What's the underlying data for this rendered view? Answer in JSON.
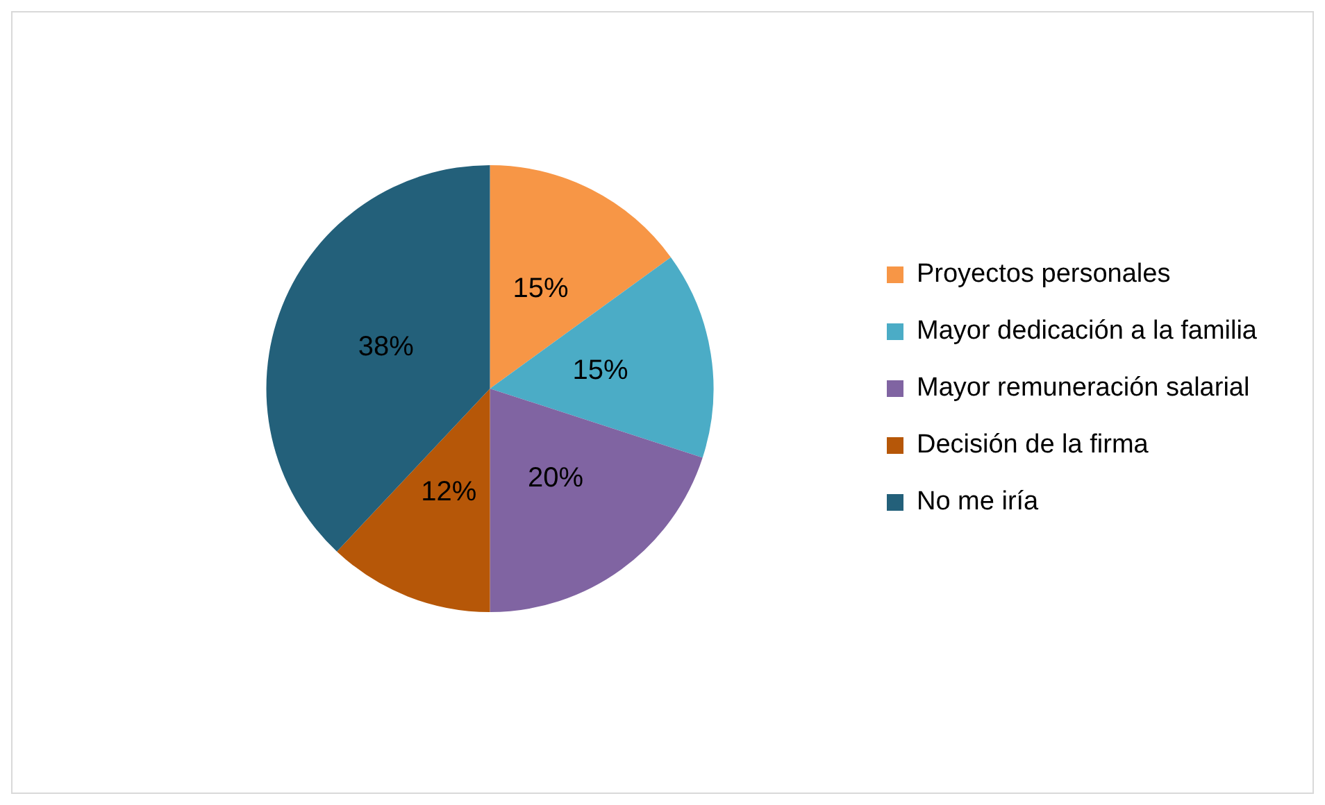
{
  "chart_data": {
    "type": "pie",
    "categories": [
      "Proyectos personales",
      "Mayor dedicación a la familia",
      "Mayor remuneración salarial",
      "Decisión de la firma",
      "No me iría"
    ],
    "values": [
      15,
      15,
      20,
      12,
      38
    ],
    "value_labels": [
      "15%",
      "15%",
      "20%",
      "12%",
      "38%"
    ],
    "colors": [
      "#f79646",
      "#4bacc6",
      "#8064a2",
      "#b65708",
      "#23607a"
    ],
    "legend": "right"
  }
}
